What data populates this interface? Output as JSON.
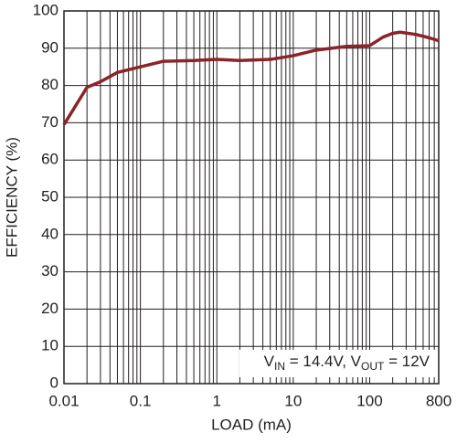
{
  "chart_data": {
    "type": "line",
    "xlabel": "LOAD (mA)",
    "ylabel": "EFFICIENCY (%)",
    "annotation": [
      "V",
      "IN",
      " = 14.4V, V",
      "OUT",
      " = 12V"
    ],
    "x": [
      0.01,
      0.02,
      0.03,
      0.05,
      0.1,
      0.2,
      0.5,
      1,
      2,
      5,
      10,
      20,
      50,
      100,
      150,
      200,
      250,
      400,
      600,
      800
    ],
    "series": [
      {
        "color": "#8b2428",
        "values": [
          69.5,
          79.5,
          81,
          83.5,
          85,
          86.5,
          86.7,
          87,
          86.7,
          87,
          88,
          89.5,
          90.5,
          90.7,
          93,
          94,
          94.3,
          93.7,
          92.8,
          92
        ]
      }
    ],
    "xlim": [
      0.01,
      800
    ],
    "ylim": [
      0,
      100
    ],
    "xscale": "log",
    "xticks": [
      0.01,
      0.1,
      1,
      10,
      100,
      800
    ],
    "xminor": [
      0.02,
      0.03,
      0.04,
      0.05,
      0.06,
      0.07,
      0.08,
      0.09,
      0.2,
      0.3,
      0.4,
      0.5,
      0.6,
      0.7,
      0.8,
      0.9,
      2,
      3,
      4,
      5,
      6,
      7,
      8,
      9,
      20,
      30,
      40,
      50,
      60,
      70,
      80,
      90,
      200,
      300,
      400,
      500,
      600,
      700
    ],
    "yticks": [
      0,
      10,
      20,
      30,
      40,
      50,
      60,
      70,
      80,
      90,
      100
    ],
    "grid": true
  }
}
